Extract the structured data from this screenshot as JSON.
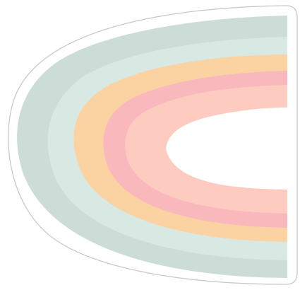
{
  "sticker": {
    "shape": "half-rainbow-arch",
    "outline_color": "#c9c9c9",
    "background_color": "#ffffff",
    "bands": [
      {
        "name": "sage",
        "color": "#cbddd6"
      },
      {
        "name": "mint",
        "color": "#d8e9e3"
      },
      {
        "name": "apricot",
        "color": "#fbd3a3"
      },
      {
        "name": "pink",
        "color": "#f8b8bc"
      },
      {
        "name": "peach",
        "color": "#fdcbc0"
      }
    ]
  }
}
